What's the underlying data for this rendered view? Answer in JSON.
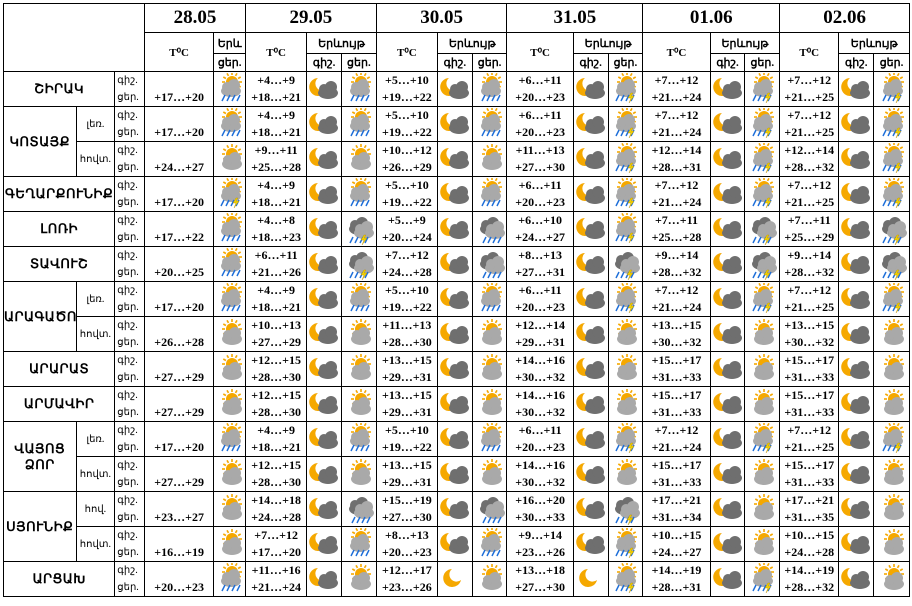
{
  "header": {
    "dates": [
      "28.05",
      "29.05",
      "30.05",
      "31.05",
      "01.06",
      "02.06"
    ],
    "temp_label": "T⁰C",
    "weather_label": "Երևույթ",
    "day_label": "ցեր.",
    "night_label": "գիշ.",
    "first_weather_label": "Երև"
  },
  "row_labels": {
    "night": "գիշ.",
    "day": "ցեր."
  },
  "regions": [
    {
      "name": "ՇԻՐԱԿ",
      "sub": null,
      "rowspan": 1,
      "cells": [
        {
          "n": "",
          "d": "+17…+20",
          "icons": [
            "sun-cloud-rain"
          ]
        },
        {
          "n": "+4…+9",
          "d": "+18…+21",
          "icons": [
            "moon-cloud",
            "sun-cloud-rain"
          ]
        },
        {
          "n": "+5…+10",
          "d": "+19…+22",
          "icons": [
            "moon-cloud",
            "sun-cloud-rain"
          ]
        },
        {
          "n": "+6…+11",
          "d": "+20…+23",
          "icons": [
            "moon-cloud",
            "sun-cloud-storm"
          ]
        },
        {
          "n": "+7…+12",
          "d": "+21…+24",
          "icons": [
            "moon-cloud",
            "sun-cloud-storm"
          ]
        },
        {
          "n": "+7…+12",
          "d": "+21…+25",
          "icons": [
            "moon-cloud",
            "sun-cloud-storm"
          ]
        }
      ]
    },
    {
      "name": "ԿՈՏԱՅՔ",
      "sub": "լեռ.",
      "rowspan": 2,
      "cells": [
        {
          "n": "",
          "d": "+17…+20",
          "icons": [
            "sun-cloud-rain"
          ]
        },
        {
          "n": "+4…+9",
          "d": "+18…+21",
          "icons": [
            "moon-cloud",
            "sun-cloud-rain"
          ]
        },
        {
          "n": "+5…+10",
          "d": "+19…+22",
          "icons": [
            "moon-cloud",
            "sun-cloud-rain"
          ]
        },
        {
          "n": "+6…+11",
          "d": "+20…+23",
          "icons": [
            "moon-cloud",
            "sun-cloud-storm"
          ]
        },
        {
          "n": "+7…+12",
          "d": "+21…+24",
          "icons": [
            "moon-cloud",
            "sun-cloud-storm"
          ]
        },
        {
          "n": "+7…+12",
          "d": "+21…+25",
          "icons": [
            "moon-cloud",
            "sun-cloud-storm"
          ]
        }
      ]
    },
    {
      "name": null,
      "sub": "հովտ.",
      "rowspan": 0,
      "cells": [
        {
          "n": "",
          "d": "+24…+27",
          "icons": [
            "sun-cloud"
          ]
        },
        {
          "n": "+9…+11",
          "d": "+25…+28",
          "icons": [
            "moon-cloud",
            "sun-cloud"
          ]
        },
        {
          "n": "+10…+12",
          "d": "+26…+29",
          "icons": [
            "moon-cloud",
            "sun-cloud"
          ]
        },
        {
          "n": "+11…+13",
          "d": "+27…+30",
          "icons": [
            "moon-cloud",
            "sun-cloud-storm"
          ]
        },
        {
          "n": "+12…+14",
          "d": "+28…+31",
          "icons": [
            "moon-cloud",
            "sun-cloud-storm"
          ]
        },
        {
          "n": "+12…+14",
          "d": "+28…+32",
          "icons": [
            "moon-cloud",
            "sun-cloud-storm"
          ]
        }
      ]
    },
    {
      "name": "ԳԵՂԱՐՔՈՒՆԻՔ",
      "sub": null,
      "rowspan": 1,
      "cells": [
        {
          "n": "",
          "d": "+17…+20",
          "icons": [
            "sun-cloud-storm"
          ]
        },
        {
          "n": "+4…+9",
          "d": "+18…+21",
          "icons": [
            "moon-cloud",
            "sun-cloud-rain"
          ]
        },
        {
          "n": "+5…+10",
          "d": "+19…+22",
          "icons": [
            "moon-cloud",
            "sun-cloud-rain"
          ]
        },
        {
          "n": "+6…+11",
          "d": "+20…+23",
          "icons": [
            "moon-cloud",
            "sun-cloud-storm"
          ]
        },
        {
          "n": "+7…+12",
          "d": "+21…+24",
          "icons": [
            "moon-cloud",
            "sun-cloud-storm"
          ]
        },
        {
          "n": "+7…+12",
          "d": "+21…+25",
          "icons": [
            "moon-cloud",
            "sun-cloud-storm"
          ]
        }
      ]
    },
    {
      "name": "ԼՈՌԻ",
      "sub": null,
      "rowspan": 1,
      "cells": [
        {
          "n": "",
          "d": "+17…+22",
          "icons": [
            "sun-cloud-rain"
          ]
        },
        {
          "n": "+4…+8",
          "d": "+18…+23",
          "icons": [
            "moon-cloud",
            "cloud-storm"
          ]
        },
        {
          "n": "+5…+9",
          "d": "+20…+24",
          "icons": [
            "moon-cloud",
            "cloud-rain"
          ]
        },
        {
          "n": "+6…+10",
          "d": "+24…+27",
          "icons": [
            "moon-cloud",
            "sun-cloud-storm"
          ]
        },
        {
          "n": "+7…+11",
          "d": "+25…+28",
          "icons": [
            "moon-cloud",
            "cloud-storm"
          ]
        },
        {
          "n": "+7…+11",
          "d": "+25…+29",
          "icons": [
            "moon-cloud",
            "cloud-storm"
          ]
        }
      ]
    },
    {
      "name": "ՏԱՎՈՒՇ",
      "sub": null,
      "rowspan": 1,
      "cells": [
        {
          "n": "",
          "d": "+20…+25",
          "icons": [
            "sun-cloud-rain"
          ]
        },
        {
          "n": "+6…+11",
          "d": "+21…+26",
          "icons": [
            "moon-cloud",
            "cloud-storm"
          ]
        },
        {
          "n": "+7…+12",
          "d": "+24…+28",
          "icons": [
            "moon-cloud",
            "cloud-rain"
          ]
        },
        {
          "n": "+8…+13",
          "d": "+27…+31",
          "icons": [
            "moon-cloud",
            "cloud-storm"
          ]
        },
        {
          "n": "+9…+14",
          "d": "+28…+32",
          "icons": [
            "moon-cloud",
            "cloud-storm"
          ]
        },
        {
          "n": "+9…+14",
          "d": "+28…+32",
          "icons": [
            "moon-cloud",
            "cloud-storm"
          ]
        }
      ]
    },
    {
      "name": "ԱՐԱԳԱԾՈՏՆ",
      "sub": "լեռ.",
      "rowspan": 2,
      "cells": [
        {
          "n": "",
          "d": "+17…+20",
          "icons": [
            "sun-cloud-rain"
          ]
        },
        {
          "n": "+4…+9",
          "d": "+18…+21",
          "icons": [
            "moon-cloud",
            "sun-cloud-rain"
          ]
        },
        {
          "n": "+5…+10",
          "d": "+19…+22",
          "icons": [
            "moon-cloud",
            "sun-cloud-rain"
          ]
        },
        {
          "n": "+6…+11",
          "d": "+20…+23",
          "icons": [
            "moon-cloud",
            "sun-cloud-storm"
          ]
        },
        {
          "n": "+7…+12",
          "d": "+21…+24",
          "icons": [
            "moon-cloud",
            "sun-cloud-storm"
          ]
        },
        {
          "n": "+7…+12",
          "d": "+21…+25",
          "icons": [
            "moon-cloud",
            "sun-cloud-storm"
          ]
        }
      ]
    },
    {
      "name": null,
      "sub": "հովտ.",
      "rowspan": 0,
      "cells": [
        {
          "n": "",
          "d": "+26…+28",
          "icons": [
            "sun-cloud"
          ]
        },
        {
          "n": "+10…+13",
          "d": "+27…+29",
          "icons": [
            "moon-cloud",
            "sun-cloud"
          ]
        },
        {
          "n": "+11…+13",
          "d": "+28…+30",
          "icons": [
            "moon-cloud",
            "sun-cloud"
          ]
        },
        {
          "n": "+12…+14",
          "d": "+29…+31",
          "icons": [
            "moon-cloud",
            "sun-cloud"
          ]
        },
        {
          "n": "+13…+15",
          "d": "+30…+32",
          "icons": [
            "moon-cloud",
            "sun-cloud"
          ]
        },
        {
          "n": "+13…+15",
          "d": "+30…+32",
          "icons": [
            "moon-cloud",
            "sun-cloud"
          ]
        }
      ]
    },
    {
      "name": "ԱՐԱՐԱՏ",
      "sub": null,
      "rowspan": 1,
      "cells": [
        {
          "n": "",
          "d": "+27…+29",
          "icons": [
            "sun-cloud"
          ]
        },
        {
          "n": "+12…+15",
          "d": "+28…+30",
          "icons": [
            "moon-cloud",
            "sun-cloud"
          ]
        },
        {
          "n": "+13…+15",
          "d": "+29…+31",
          "icons": [
            "moon-cloud",
            "sun-cloud"
          ]
        },
        {
          "n": "+14…+16",
          "d": "+30…+32",
          "icons": [
            "moon-cloud",
            "sun-cloud"
          ]
        },
        {
          "n": "+15…+17",
          "d": "+31…+33",
          "icons": [
            "moon-cloud",
            "sun-cloud"
          ]
        },
        {
          "n": "+15…+17",
          "d": "+31…+33",
          "icons": [
            "moon-cloud",
            "sun-cloud"
          ]
        }
      ]
    },
    {
      "name": "ԱՐՄԱՎԻՐ",
      "sub": null,
      "rowspan": 1,
      "cells": [
        {
          "n": "",
          "d": "+27…+29",
          "icons": [
            "sun-cloud"
          ]
        },
        {
          "n": "+12…+15",
          "d": "+28…+30",
          "icons": [
            "moon-cloud",
            "sun-cloud"
          ]
        },
        {
          "n": "+13…+15",
          "d": "+29…+31",
          "icons": [
            "moon-cloud",
            "sun-cloud"
          ]
        },
        {
          "n": "+14…+16",
          "d": "+30…+32",
          "icons": [
            "moon-cloud",
            "sun-cloud"
          ]
        },
        {
          "n": "+15…+17",
          "d": "+31…+33",
          "icons": [
            "moon-cloud",
            "sun-cloud"
          ]
        },
        {
          "n": "+15…+17",
          "d": "+31…+33",
          "icons": [
            "moon-cloud",
            "sun-cloud"
          ]
        }
      ]
    },
    {
      "name": "ՎԱՅՈՑ ՁՈՐ",
      "sub": "լեռ.",
      "rowspan": 2,
      "cells": [
        {
          "n": "",
          "d": "+17…+20",
          "icons": [
            "sun-cloud-rain"
          ]
        },
        {
          "n": "+4…+9",
          "d": "+18…+21",
          "icons": [
            "moon-cloud",
            "sun-cloud-rain"
          ]
        },
        {
          "n": "+5…+10",
          "d": "+19…+22",
          "icons": [
            "moon-cloud",
            "sun-cloud-rain"
          ]
        },
        {
          "n": "+6…+11",
          "d": "+20…+23",
          "icons": [
            "moon-cloud",
            "sun-cloud-storm"
          ]
        },
        {
          "n": "+7…+12",
          "d": "+21…+24",
          "icons": [
            "moon-cloud",
            "sun-cloud-storm"
          ]
        },
        {
          "n": "+7…+12",
          "d": "+21…+25",
          "icons": [
            "moon-cloud",
            "sun-cloud-storm"
          ]
        }
      ]
    },
    {
      "name": null,
      "sub": "հովտ.",
      "rowspan": 0,
      "cells": [
        {
          "n": "",
          "d": "+27…+29",
          "icons": [
            "sun-cloud"
          ]
        },
        {
          "n": "+12…+15",
          "d": "+28…+30",
          "icons": [
            "moon-cloud",
            "sun-cloud"
          ]
        },
        {
          "n": "+13…+15",
          "d": "+29…+31",
          "icons": [
            "moon-cloud",
            "sun-cloud"
          ]
        },
        {
          "n": "+14…+16",
          "d": "+30…+32",
          "icons": [
            "moon-cloud",
            "sun-cloud"
          ]
        },
        {
          "n": "+15…+17",
          "d": "+31…+33",
          "icons": [
            "moon-cloud",
            "sun-cloud"
          ]
        },
        {
          "n": "+15…+17",
          "d": "+31…+33",
          "icons": [
            "moon-cloud",
            "sun-cloud"
          ]
        }
      ]
    },
    {
      "name": "ՍՅՈՒՆԻՔ",
      "sub": "հով.",
      "rowspan": 2,
      "cells": [
        {
          "n": "",
          "d": "+23…+27",
          "icons": [
            "sun-cloud"
          ]
        },
        {
          "n": "+14…+18",
          "d": "+24…+28",
          "icons": [
            "moon-cloud",
            "cloud-rain"
          ]
        },
        {
          "n": "+15…+19",
          "d": "+27…+30",
          "icons": [
            "moon-cloud",
            "cloud-rain"
          ]
        },
        {
          "n": "+16…+20",
          "d": "+30…+33",
          "icons": [
            "moon-cloud",
            "cloud-storm"
          ]
        },
        {
          "n": "+17…+21",
          "d": "+31…+34",
          "icons": [
            "moon-cloud",
            "sun-cloud"
          ]
        },
        {
          "n": "+17…+21",
          "d": "+31…+35",
          "icons": [
            "moon-cloud",
            "sun-cloud"
          ]
        }
      ]
    },
    {
      "name": null,
      "sub": "հովտ.",
      "rowspan": 0,
      "cells": [
        {
          "n": "",
          "d": "+16…+19",
          "icons": [
            "sun-cloud"
          ]
        },
        {
          "n": "+7…+12",
          "d": "+17…+20",
          "icons": [
            "moon-cloud",
            "sun-cloud-rain"
          ]
        },
        {
          "n": "+8…+13",
          "d": "+20…+23",
          "icons": [
            "moon-cloud",
            "sun-cloud-rain"
          ]
        },
        {
          "n": "+9…+14",
          "d": "+23…+26",
          "icons": [
            "moon-cloud",
            "sun-cloud-storm"
          ]
        },
        {
          "n": "+10…+15",
          "d": "+24…+27",
          "icons": [
            "moon-cloud",
            "sun-cloud"
          ]
        },
        {
          "n": "+10…+15",
          "d": "+24…+28",
          "icons": [
            "moon-cloud",
            "sun-cloud"
          ]
        }
      ]
    },
    {
      "name": "ԱՐՑԱԽ",
      "sub": null,
      "rowspan": 1,
      "cells": [
        {
          "n": "",
          "d": "+20…+23",
          "icons": [
            "sun-cloud-rain"
          ]
        },
        {
          "n": "+11…+16",
          "d": "+21…+24",
          "icons": [
            "moon-cloud",
            "sun-cloud"
          ]
        },
        {
          "n": "+12…+17",
          "d": "+23…+26",
          "icons": [
            "moon",
            "sun-cloud"
          ]
        },
        {
          "n": "+13…+18",
          "d": "+27…+30",
          "icons": [
            "moon",
            "sun-cloud-storm"
          ]
        },
        {
          "n": "+14…+19",
          "d": "+28…+31",
          "icons": [
            "moon-cloud",
            "sun-cloud-storm"
          ]
        },
        {
          "n": "+14…+19",
          "d": "+28…+32",
          "icons": [
            "moon-cloud",
            "sun-cloud"
          ]
        }
      ]
    }
  ],
  "colors": {
    "sun": "#f5a800",
    "cloud": "#6f6f6f",
    "cloud_light": "#a9a9a9",
    "rain": "#1e6fd9",
    "lightning": "#f2d200"
  }
}
